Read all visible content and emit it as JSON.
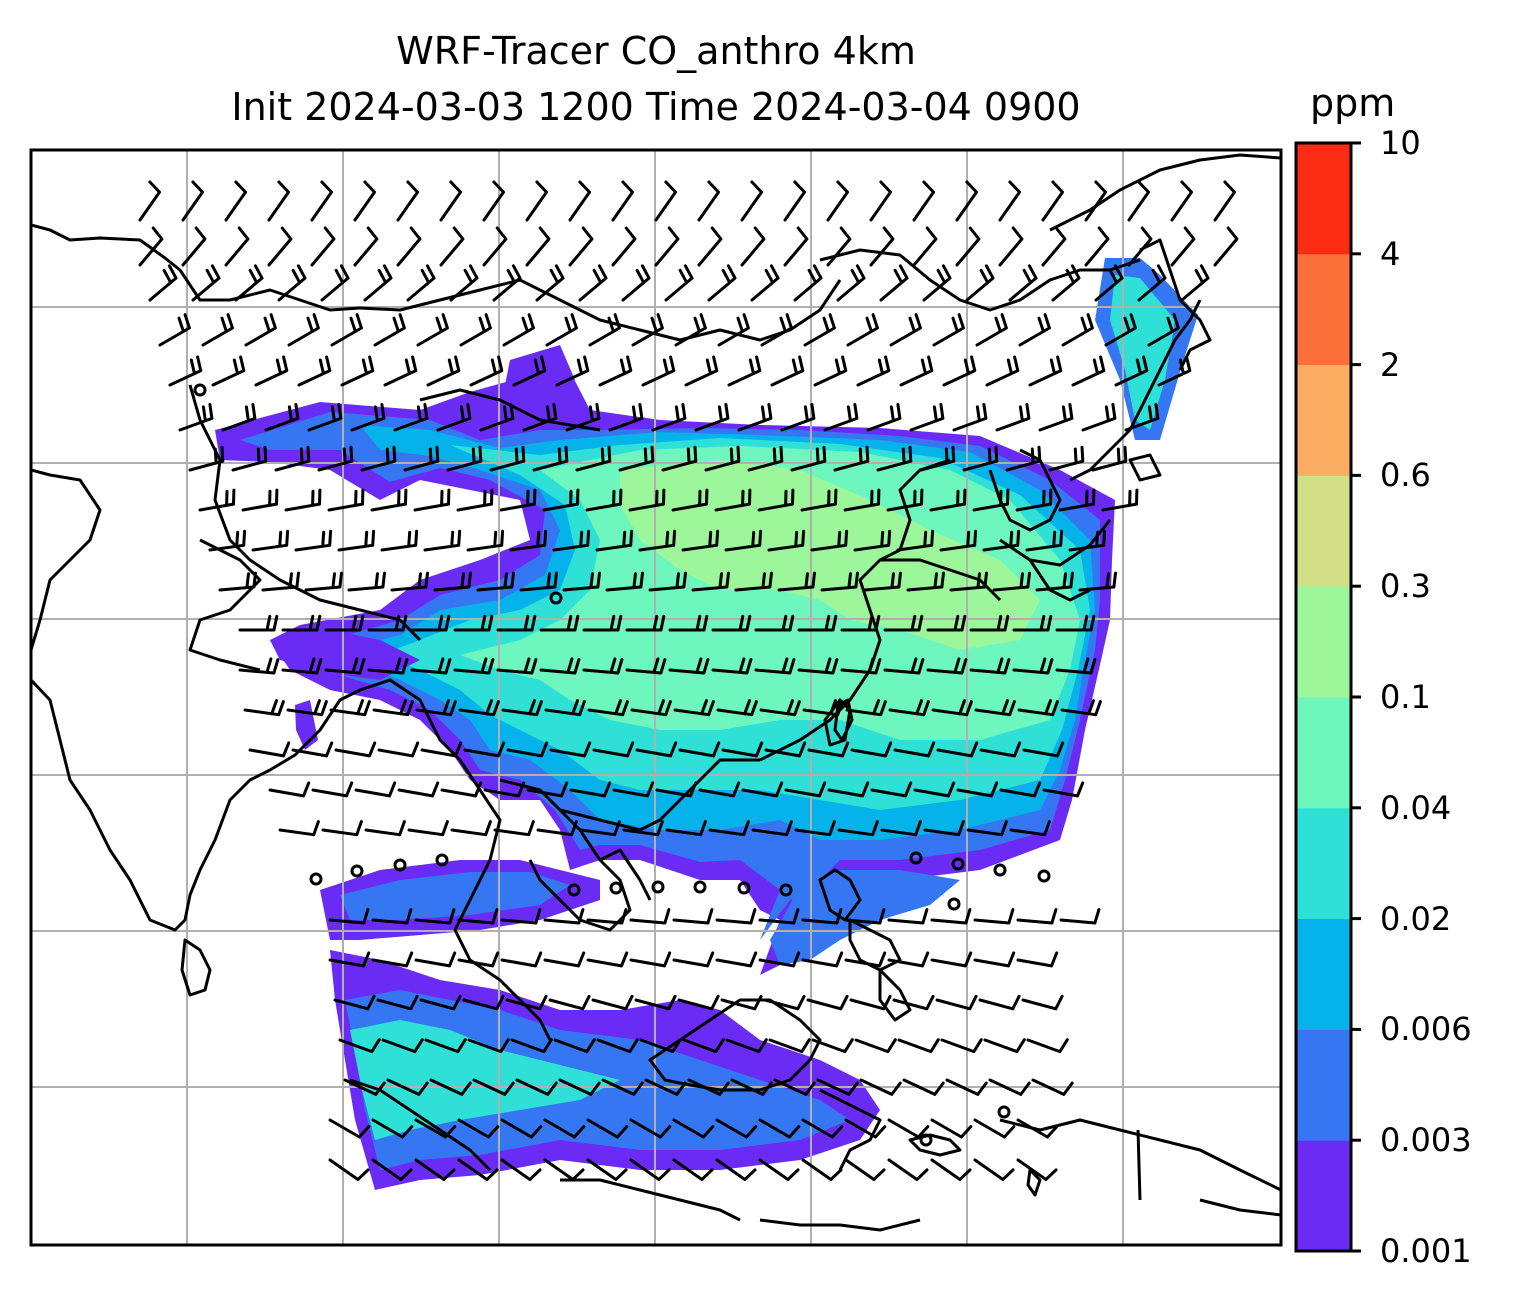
{
  "title": {
    "line1": "WRF-Tracer CO_anthro 4km",
    "line2": "Init 2024-03-03 1200 Time 2024-03-04 0900"
  },
  "colorbar": {
    "unit": "ppm",
    "ticks": [
      "0.001",
      "0.003",
      "0.006",
      "0.02",
      "0.04",
      "0.1",
      "0.3",
      "0.6",
      "2",
      "4",
      "10"
    ],
    "colors": [
      "#6a2cf5",
      "#3576f2",
      "#06b2ea",
      "#2fe0d6",
      "#6ef6bf",
      "#9cf79a",
      "#d2df86",
      "#fbae62",
      "#fb7039",
      "#fc2c14"
    ]
  },
  "map": {
    "field": "CO_anthro",
    "gridlines": true,
    "overlays": [
      "coastlines",
      "country-borders",
      "wind-barbs"
    ]
  }
}
